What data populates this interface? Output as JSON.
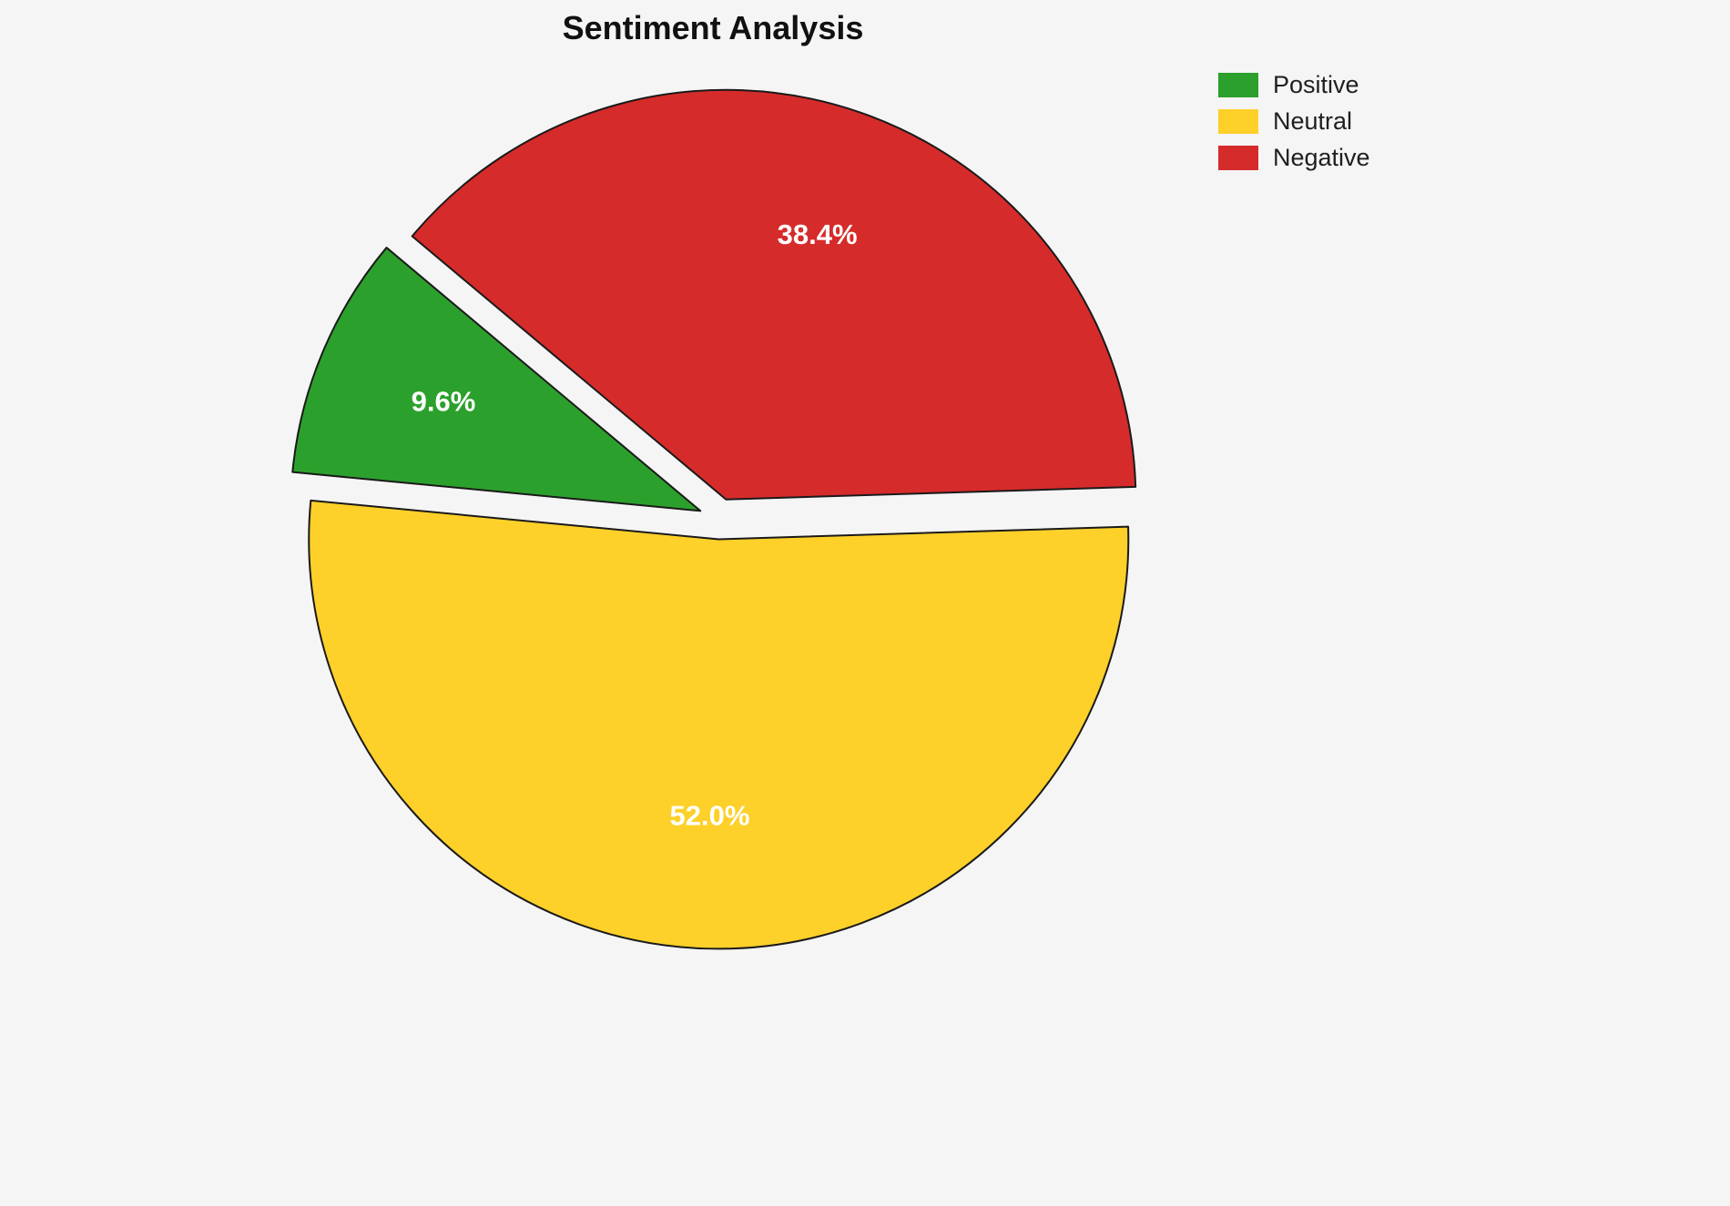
{
  "title": "Sentiment Analysis",
  "background": "#f5f5f6",
  "chart_data": {
    "type": "pie",
    "title": "Sentiment Analysis",
    "labels": [
      "Positive",
      "Neutral",
      "Negative"
    ],
    "values": [
      9.6,
      52.0,
      38.4
    ],
    "pct_labels": [
      "9.6%",
      "52.0%",
      "38.4%"
    ],
    "colors": [
      "#2ca02c",
      "#fdd02a",
      "#d62b2b"
    ],
    "edge_color": "#1a1a1a",
    "pct_label_color": "#ffffff",
    "start_angle": 140,
    "counterclockwise": true,
    "explode": [
      0.05,
      0.05,
      0.05
    ],
    "legend_position": "upper right",
    "legend": [
      {
        "label": "Positive",
        "color": "#2ca02c"
      },
      {
        "label": "Neutral",
        "color": "#fdd02a"
      },
      {
        "label": "Negative",
        "color": "#d62b2b"
      }
    ]
  }
}
